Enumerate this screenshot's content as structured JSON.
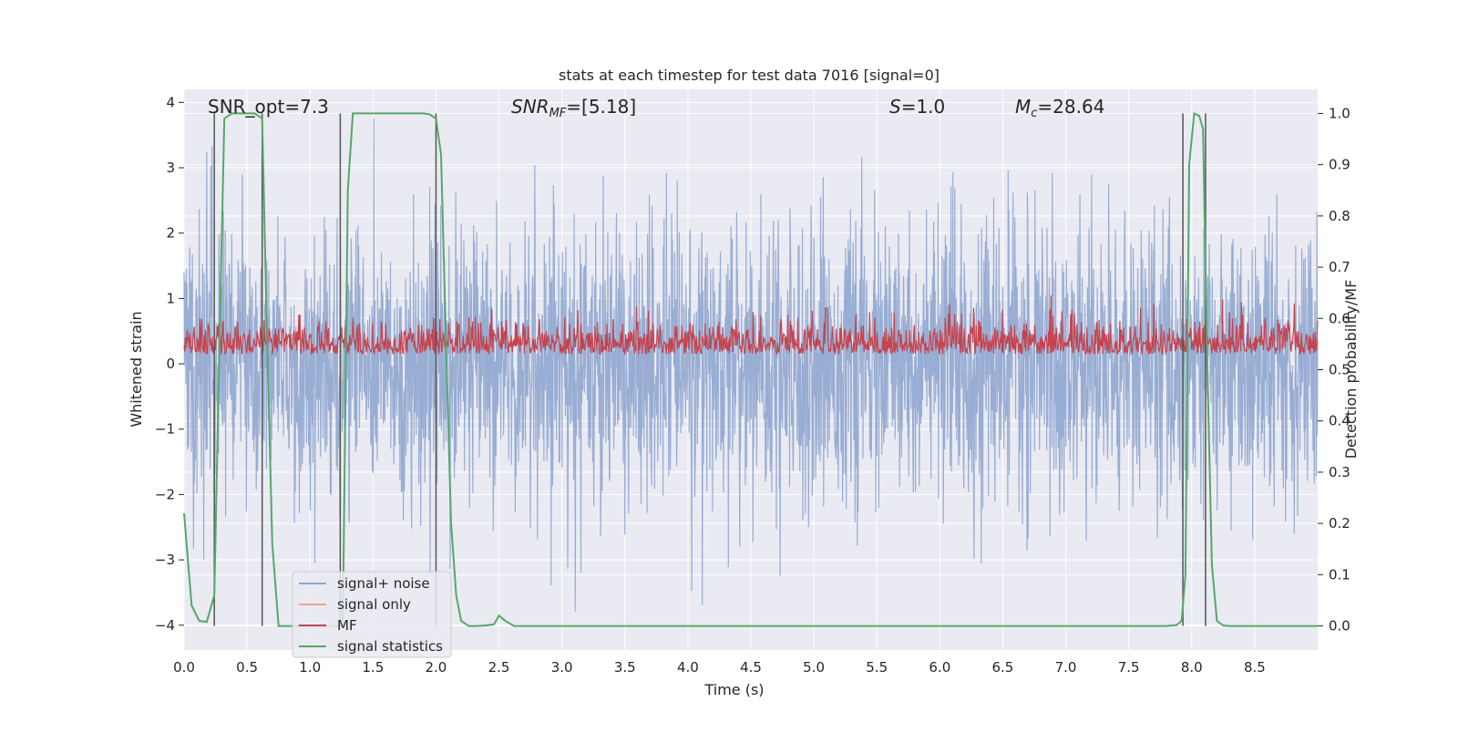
{
  "chart_data": {
    "type": "line",
    "title": "stats at each timestep for test data 7016 [signal=0]",
    "xlabel": "Time (s)",
    "ylabel_left": "Whitened strain",
    "ylabel_right": "Detection probability/MF",
    "xlim": [
      0.0,
      9.0
    ],
    "ylim_left": [
      -4.38,
      4.2
    ],
    "ylim_right": [
      -0.047,
      1.047
    ],
    "x_ticks": [
      "0.0",
      "0.5",
      "1.0",
      "1.5",
      "2.0",
      "2.5",
      "3.0",
      "3.5",
      "4.0",
      "4.5",
      "5.0",
      "5.5",
      "6.0",
      "6.5",
      "7.0",
      "7.5",
      "8.0",
      "8.5"
    ],
    "y_ticks_left": [
      "−4",
      "−3",
      "−2",
      "−1",
      "0",
      "1",
      "2",
      "3",
      "4"
    ],
    "y_ticks_right": [
      "0.0",
      "0.1",
      "0.2",
      "0.3",
      "0.4",
      "0.5",
      "0.6",
      "0.7",
      "0.8",
      "0.9",
      "1.0"
    ],
    "annotations": {
      "snr_opt": "SNR_opt=7.3",
      "snr_mf_label": "SNR",
      "snr_mf_sub": "MF",
      "snr_mf_value": "=[5.18]",
      "s_label": "S",
      "s_value": "=1.0",
      "mc_label": "M",
      "mc_sub": "c",
      "mc_value": "=28.64"
    },
    "legend": [
      "signal+ noise",
      "signal only",
      "MF",
      "signal statistics"
    ],
    "colors": {
      "noise": "#8fa6cf",
      "signal_only": "#eaa58f",
      "mf": "#c4444f",
      "stat": "#55a868",
      "vline": "#555555",
      "plot_bg": "#eaeaf2",
      "grid": "#ffffff"
    },
    "vertical_lines_s": [
      0.24,
      0.62,
      1.24,
      2.0,
      7.93,
      8.11
    ],
    "signal_statistics": {
      "x": [
        0.0,
        0.06,
        0.12,
        0.18,
        0.24,
        0.28,
        0.32,
        0.38,
        0.44,
        0.5,
        0.56,
        0.62,
        0.66,
        0.7,
        0.75,
        0.8,
        0.9,
        1.0,
        1.1,
        1.18,
        1.22,
        1.26,
        1.3,
        1.34,
        1.4,
        1.5,
        1.6,
        1.7,
        1.8,
        1.9,
        1.95,
        2.0,
        2.04,
        2.08,
        2.12,
        2.16,
        2.2,
        2.26,
        2.32,
        2.4,
        2.46,
        2.5,
        2.55,
        2.62,
        2.7,
        3.0,
        4.0,
        5.0,
        6.0,
        7.0,
        7.8,
        7.88,
        7.92,
        7.95,
        7.98,
        8.02,
        8.06,
        8.09,
        8.12,
        8.16,
        8.2,
        8.25,
        8.3,
        8.5,
        9.0
      ],
      "y": [
        0.22,
        0.04,
        0.01,
        0.008,
        0.06,
        0.54,
        0.99,
        1.0,
        1.0,
        1.0,
        1.0,
        0.99,
        0.55,
        0.16,
        0.0,
        0.0,
        0.0,
        0.0,
        0.0,
        0.0,
        0.0,
        0.0,
        0.85,
        1.0,
        1.0,
        1.0,
        1.0,
        1.0,
        1.0,
        1.0,
        0.998,
        0.99,
        0.92,
        0.55,
        0.2,
        0.06,
        0.01,
        0.0,
        0.0,
        0.001,
        0.003,
        0.02,
        0.01,
        0.0,
        0.0,
        0.0,
        0.0,
        0.0,
        0.0,
        0.0,
        0.0,
        0.002,
        0.01,
        0.1,
        0.9,
        1.0,
        0.995,
        0.97,
        0.55,
        0.12,
        0.01,
        0.001,
        0.0,
        0.0,
        0.0
      ]
    }
  }
}
